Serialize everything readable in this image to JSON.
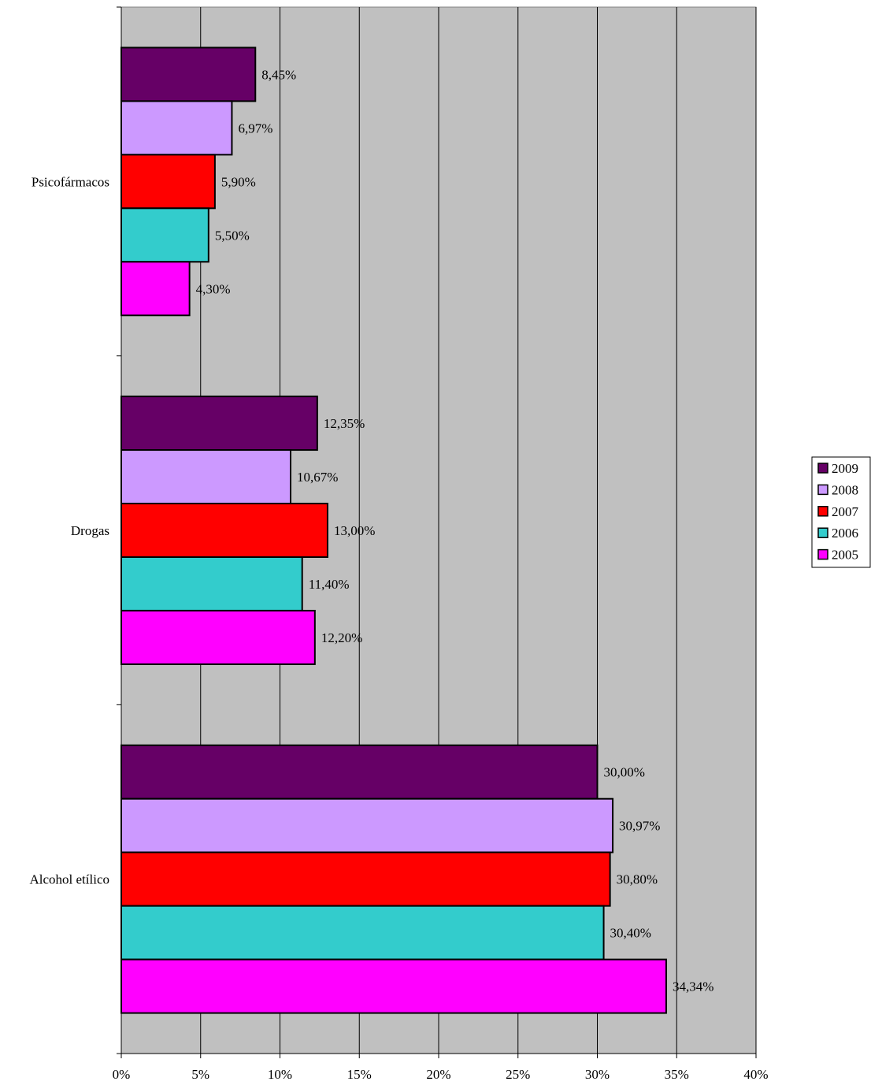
{
  "chart_data": {
    "type": "bar",
    "orientation": "horizontal",
    "categories": [
      "Psicofármacos",
      "Drogas",
      "Alcohol etílico"
    ],
    "series": [
      {
        "name": "2009",
        "color": "#660066",
        "values": [
          8.45,
          12.35,
          30.0
        ],
        "labels": [
          "8,45%",
          "12,35%",
          "30,00%"
        ]
      },
      {
        "name": "2008",
        "color": "#cc99ff",
        "values": [
          6.97,
          10.67,
          30.97
        ],
        "labels": [
          "6,97%",
          "10,67%",
          "30,97%"
        ]
      },
      {
        "name": "2007",
        "color": "#ff0000",
        "values": [
          5.9,
          13.0,
          30.8
        ],
        "labels": [
          "5,90%",
          "13,00%",
          "30,80%"
        ]
      },
      {
        "name": "2006",
        "color": "#33cccc",
        "values": [
          5.5,
          11.4,
          30.4
        ],
        "labels": [
          "5,50%",
          "11,40%",
          "30,40%"
        ]
      },
      {
        "name": "2005",
        "color": "#ff00ff",
        "values": [
          4.3,
          12.2,
          34.34
        ],
        "labels": [
          "4,30%",
          "12,20%",
          "34,34%"
        ]
      }
    ],
    "x_ticks": [
      "0%",
      "5%",
      "10%",
      "15%",
      "20%",
      "25%",
      "30%",
      "35%",
      "40%"
    ],
    "xlim": [
      0,
      40
    ],
    "plot_background": "#c0c0c0",
    "grid": true,
    "legend_position": "right"
  }
}
